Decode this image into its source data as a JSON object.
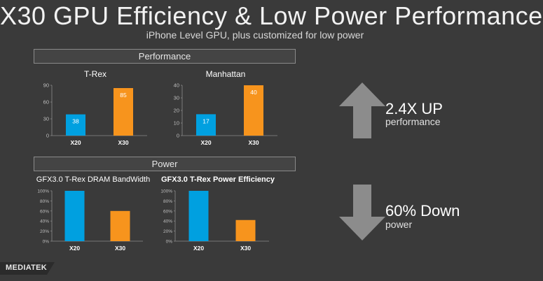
{
  "title": "X30 GPU Efficiency & Low Power Performance",
  "subtitle": "iPhone Level GPU, plus customized for low power",
  "sections": {
    "performance": "Performance",
    "power": "Power"
  },
  "claims": {
    "up_value": "2.4X UP",
    "up_label": "performance",
    "down_value": "60% Down",
    "down_label": "power"
  },
  "logo_text": "MEDIATEK",
  "colors": {
    "x20": "#00a0e0",
    "x30": "#f7941d",
    "arrow": "#8c8c8c"
  },
  "chart_data": [
    {
      "type": "bar",
      "title": "T-Rex",
      "categories": [
        "X20",
        "X30"
      ],
      "values": [
        38,
        85
      ],
      "yticks": [
        "0",
        "30",
        "60",
        "90"
      ],
      "ylim": [
        0,
        90
      ],
      "show_value_labels": true
    },
    {
      "type": "bar",
      "title": "Manhattan",
      "categories": [
        "X20",
        "X30"
      ],
      "values": [
        17,
        40
      ],
      "yticks": [
        "0",
        "10",
        "20",
        "30",
        "40"
      ],
      "ylim": [
        0,
        40
      ],
      "show_value_labels": true
    },
    {
      "type": "bar",
      "title": "GFX3.0 T-Rex DRAM BandWidth",
      "categories": [
        "X20",
        "X30"
      ],
      "values": [
        100,
        60
      ],
      "yticks": [
        "0%",
        "20%",
        "40%",
        "60%",
        "80%",
        "100%"
      ],
      "ylim": [
        0,
        100
      ],
      "show_value_labels": false
    },
    {
      "type": "bar",
      "title": "GFX3.0 T-Rex Power Efficiency",
      "categories": [
        "X20",
        "X30"
      ],
      "values": [
        100,
        42
      ],
      "yticks": [
        "0%",
        "20%",
        "40%",
        "60%",
        "80%",
        "100%"
      ],
      "ylim": [
        0,
        100
      ],
      "show_value_labels": false
    }
  ]
}
